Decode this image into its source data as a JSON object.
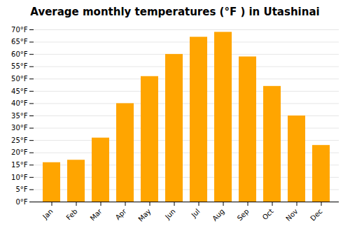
{
  "chart_data": {
    "type": "bar",
    "title": "Average monthly temperatures (°F ) in Utashinai",
    "categories": [
      "Jan",
      "Feb",
      "Mar",
      "Apr",
      "May",
      "Jun",
      "Jul",
      "Aug",
      "Sep",
      "Oct",
      "Nov",
      "Dec"
    ],
    "values": [
      16,
      17,
      26,
      40,
      51,
      60,
      67,
      69,
      59,
      47,
      35,
      23
    ],
    "color": "#FFA500",
    "ylim": [
      0,
      70
    ],
    "yticks": [
      {
        "value": 0,
        "label": "0°F"
      },
      {
        "value": 5,
        "label": "5°F"
      },
      {
        "value": 10,
        "label": "10°F"
      },
      {
        "value": 15,
        "label": "15°F"
      },
      {
        "value": 20,
        "label": "20°F"
      },
      {
        "value": 25,
        "label": "25°F"
      },
      {
        "value": 30,
        "label": "30°F"
      },
      {
        "value": 35,
        "label": "35°F"
      },
      {
        "value": 40,
        "label": "40°F"
      },
      {
        "value": 45,
        "label": "45°F"
      },
      {
        "value": 50,
        "label": "50°F"
      },
      {
        "value": 55,
        "label": "55°F"
      },
      {
        "value": 60,
        "label": "60°F"
      },
      {
        "value": 65,
        "label": "65°F"
      },
      {
        "value": 70,
        "label": "70°F"
      }
    ],
    "grid": true
  }
}
